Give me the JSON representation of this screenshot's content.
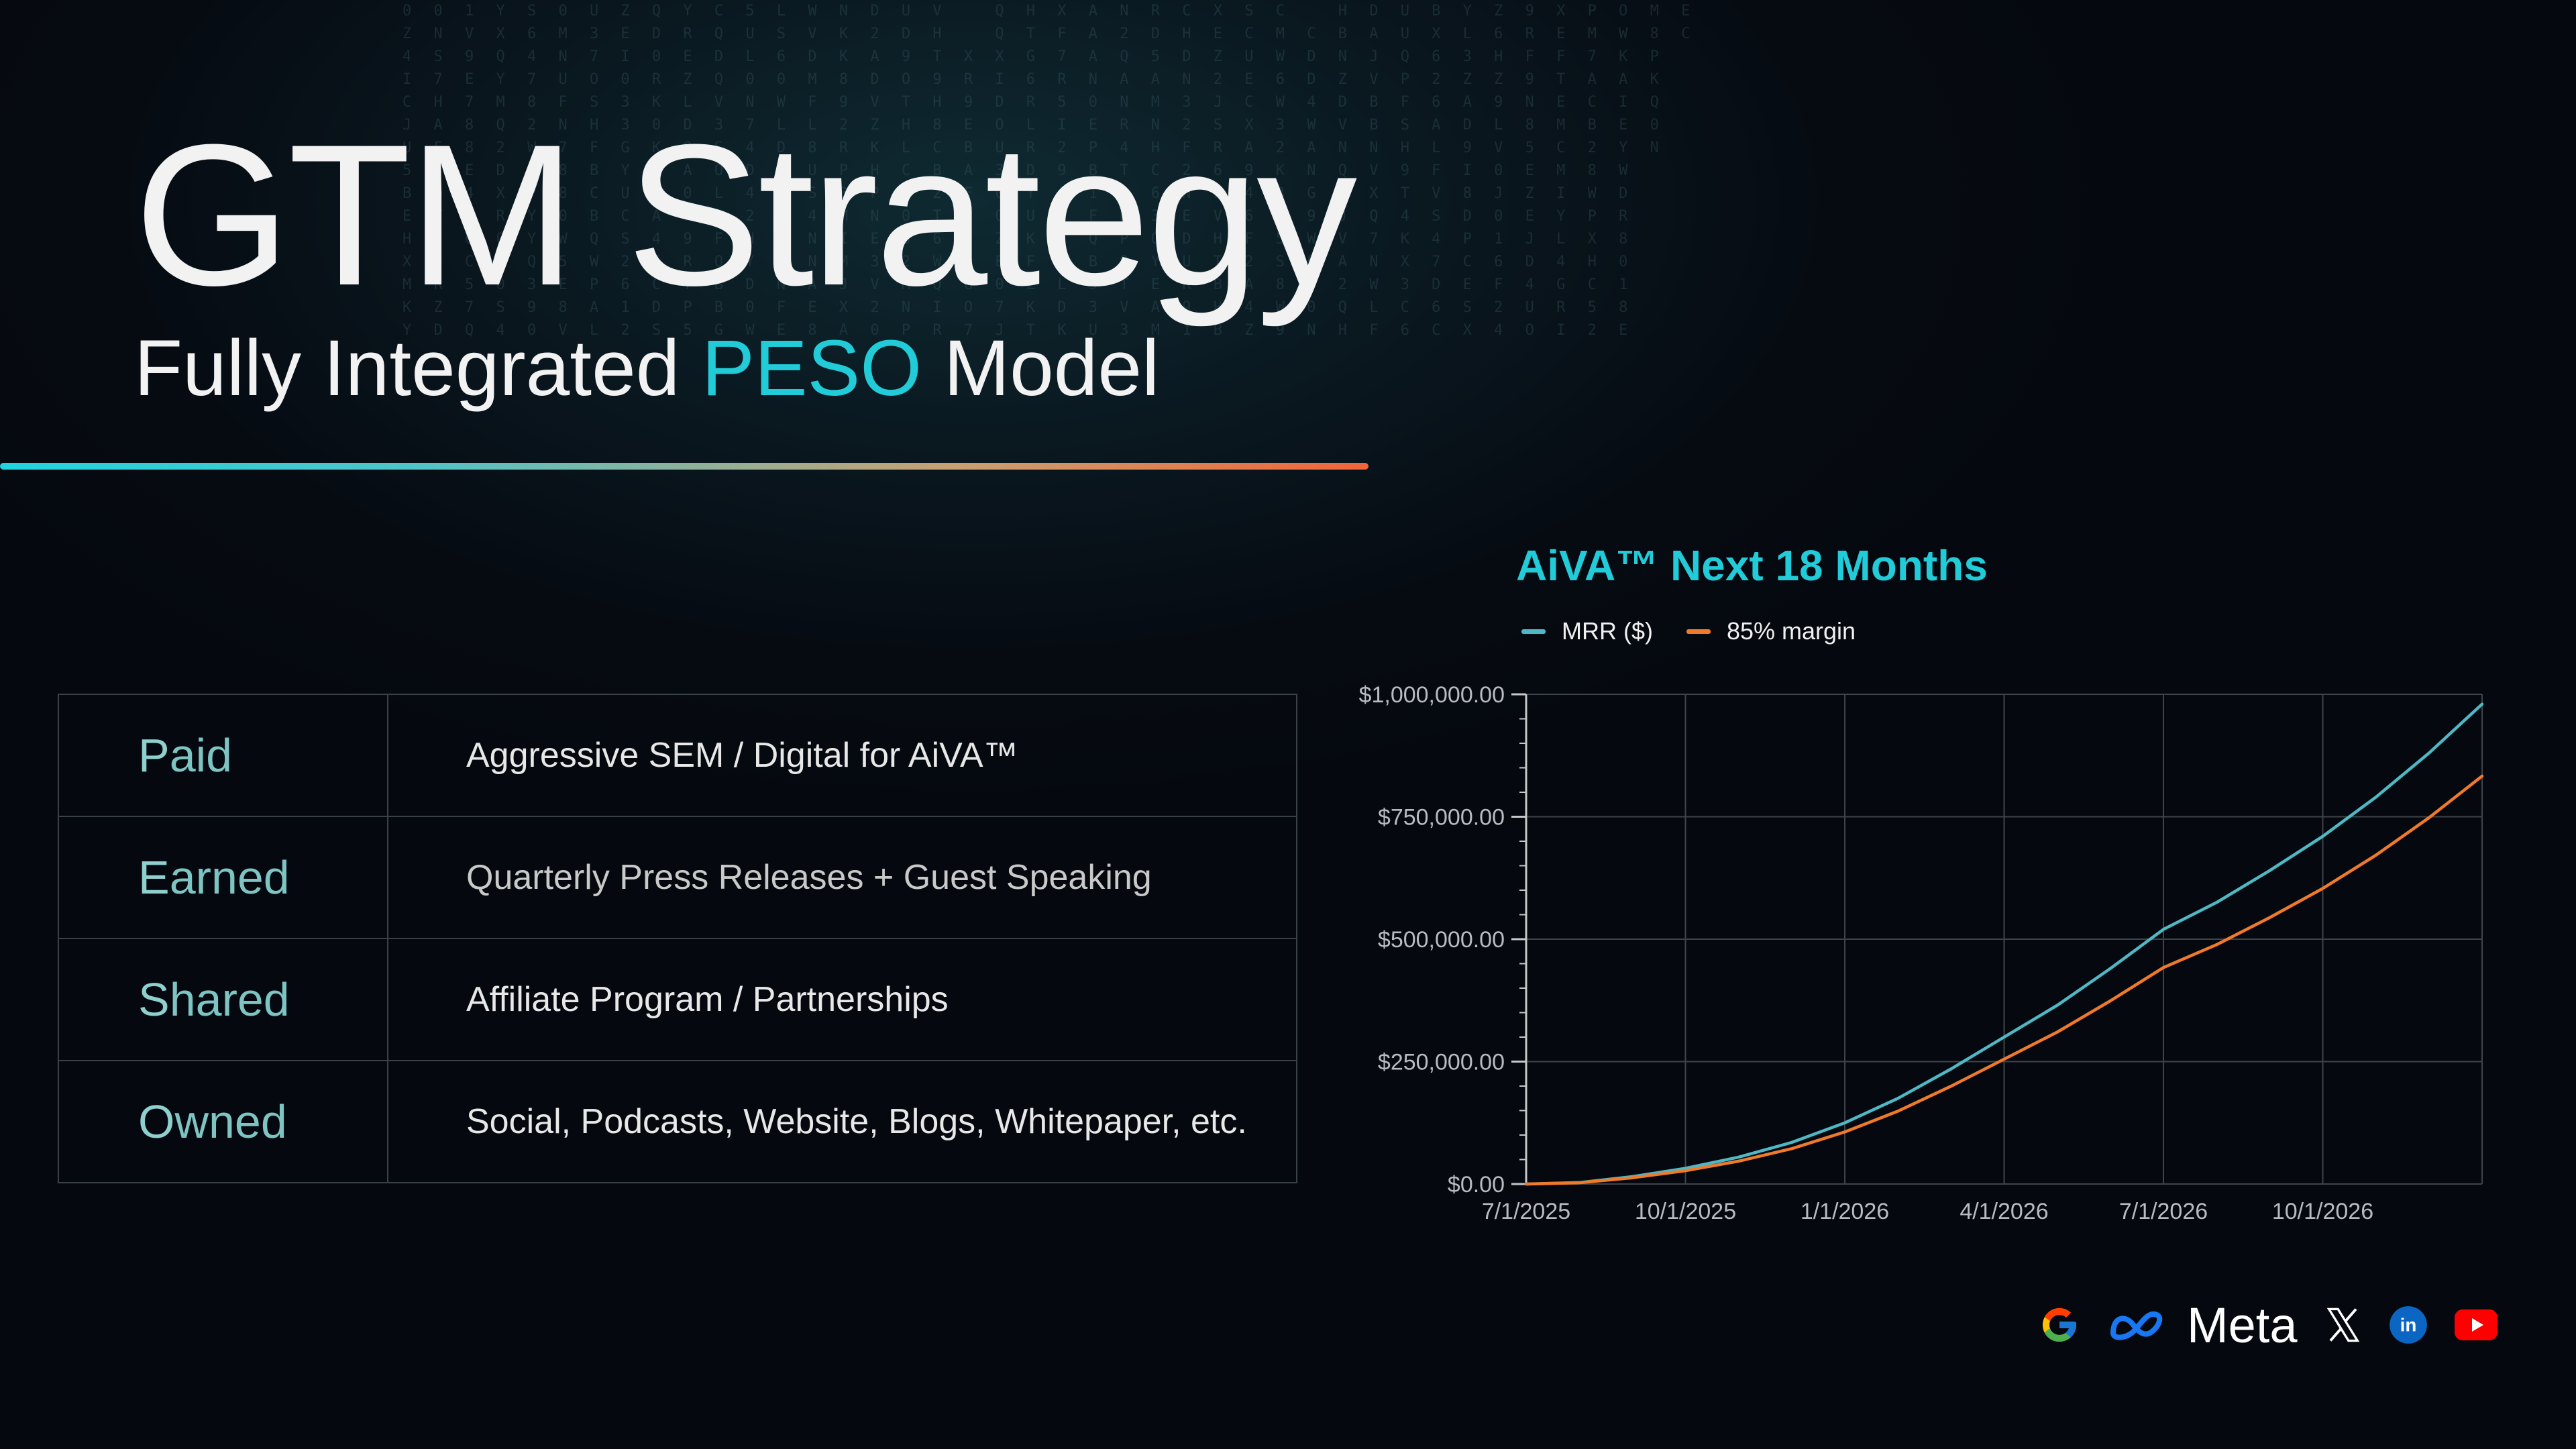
{
  "header": {
    "title": "GTM Strategy",
    "subtitle_pre": "Fully Integrated ",
    "subtitle_highlight": "PESO",
    "subtitle_post": " Model",
    "accent_color": "#21cbd8"
  },
  "peso_table": {
    "rows": [
      {
        "initial": "P",
        "rest": "aid",
        "description": "Aggressive SEM / Digital for AiVA™"
      },
      {
        "initial": "E",
        "rest": "arned",
        "description": "Quarterly Press Releases + Guest Speaking"
      },
      {
        "initial": "S",
        "rest": "hared",
        "description": "Affiliate Program / Partnerships"
      },
      {
        "initial": "O",
        "rest": "wned",
        "description": "Social, Podcasts, Website, Blogs, Whitepaper, etc."
      }
    ]
  },
  "chart_data": {
    "type": "line",
    "title": "AiVA™ Next 18 Months",
    "legend_position": "top-left",
    "grid": true,
    "x_tick_labels": [
      "7/1/2025",
      "10/1/2025",
      "1/1/2026",
      "4/1/2026",
      "7/1/2026",
      "10/1/2026"
    ],
    "x": [
      "7/1/2025",
      "8/1/2025",
      "9/1/2025",
      "10/1/2025",
      "11/1/2025",
      "12/1/2025",
      "1/1/2026",
      "2/1/2026",
      "3/1/2026",
      "4/1/2026",
      "5/1/2026",
      "6/1/2026",
      "7/1/2026",
      "8/1/2026",
      "9/1/2026",
      "10/1/2026",
      "11/1/2026",
      "12/1/2026",
      "1/1/2027"
    ],
    "ylim": [
      0,
      1000000
    ],
    "y_tick_labels": [
      "$0.00",
      "$250,000.00",
      "$500,000.00",
      "$750,000.00",
      "$1,000,000.00"
    ],
    "series": [
      {
        "name": "MRR ($)",
        "color": "#4fb8c4",
        "values": [
          0,
          3000,
          15000,
          32000,
          55000,
          85000,
          125000,
          175000,
          235000,
          300000,
          365000,
          440000,
          520000,
          575000,
          640000,
          710000,
          790000,
          880000,
          980000
        ]
      },
      {
        "name": "85% margin",
        "color": "#f07a2a",
        "values": [
          0,
          2550,
          12750,
          27200,
          46750,
          72250,
          106250,
          148750,
          199750,
          255000,
          310250,
          374000,
          442000,
          488750,
          544000,
          603500,
          671500,
          748000,
          833000
        ]
      }
    ]
  },
  "brands": {
    "items": [
      "google-icon",
      "meta-icon",
      "x-icon",
      "linkedin-icon",
      "youtube-icon"
    ],
    "meta_label": "Meta"
  }
}
